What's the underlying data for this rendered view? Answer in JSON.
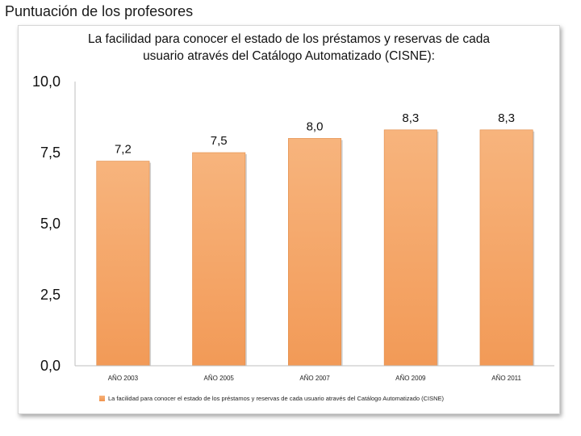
{
  "page": {
    "heading": "Puntuación de los profesores"
  },
  "chart_data": {
    "type": "bar",
    "title_lines": [
      "La facilidad para conocer el estado de los préstamos y reservas de cada",
      "usuario através del Catálogo Automatizado (CISNE):"
    ],
    "categories": [
      "AÑO 2003",
      "AÑO 2005",
      "AÑO 2007",
      "AÑO 2009",
      "AÑO 2011"
    ],
    "series": [
      {
        "name": "La facilidad para conocer el estado de los préstamos y reservas de cada usuario através del Catálogo Automatizado (CISNE)",
        "values": [
          7.2,
          7.5,
          8.0,
          8.3,
          8.3
        ],
        "labels": [
          "7,2",
          "7,5",
          "8,0",
          "8,3",
          "8,3"
        ]
      }
    ],
    "yticks": [
      0,
      2.5,
      5.0,
      7.5,
      10.0
    ],
    "ytick_labels": [
      "0,0",
      "2,5",
      "5,0",
      "7,5",
      "10,0"
    ],
    "ylim": [
      0,
      10
    ],
    "xlabel": "",
    "ylabel": "",
    "grid": false,
    "legend_position": "bottom",
    "bar_color": "#f4a366"
  }
}
